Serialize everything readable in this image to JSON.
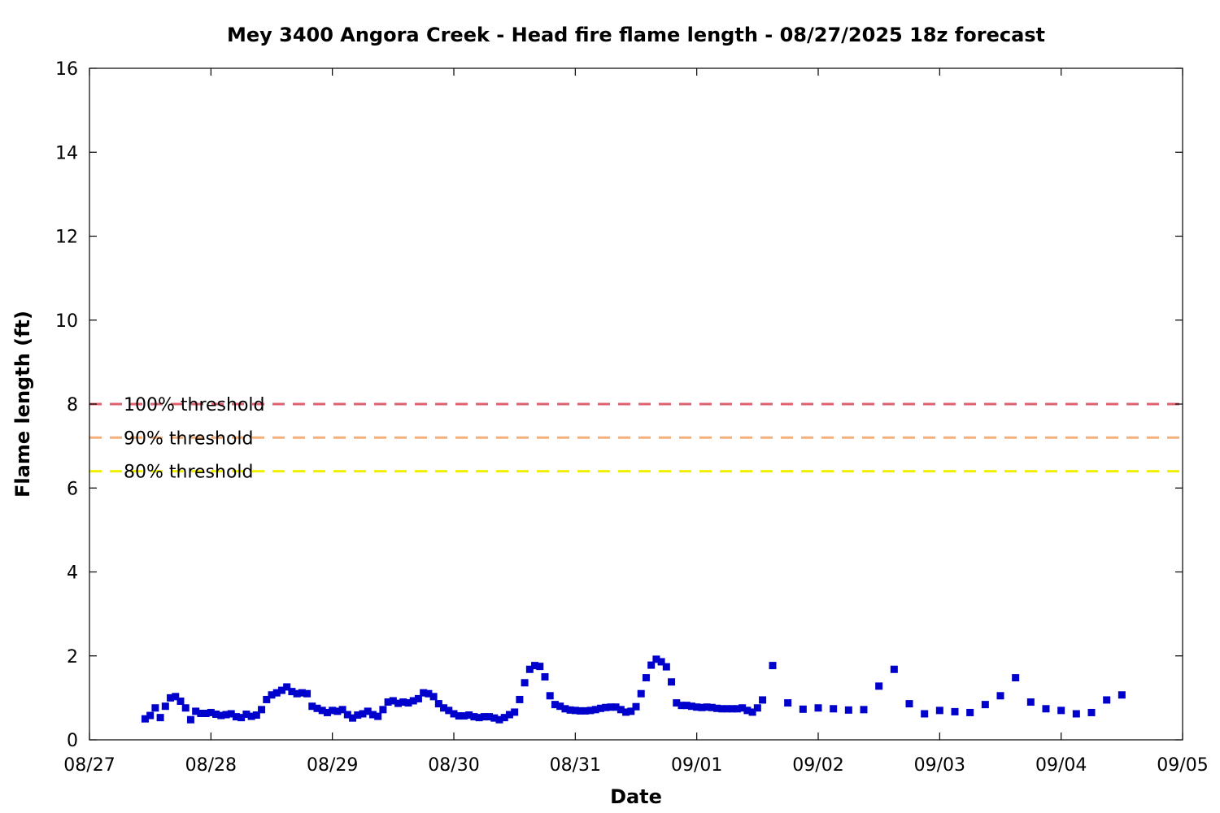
{
  "chart_data": {
    "type": "scatter",
    "title": "Mey 3400 Angora Creek - Head fire flame length - 08/27/2025 18z forecast",
    "xlabel": "Date",
    "ylabel": "Flame length (ft)",
    "xlim": [
      "08/27",
      "09/05"
    ],
    "ylim": [
      0,
      16
    ],
    "x_ticks": [
      "08/27",
      "08/28",
      "08/29",
      "08/30",
      "08/31",
      "09/01",
      "09/02",
      "09/03",
      "09/04",
      "09/05"
    ],
    "y_ticks": [
      "0",
      "2",
      "4",
      "6",
      "8",
      "10",
      "12",
      "14",
      "16"
    ],
    "grid": false,
    "marker_color": "#0000cc",
    "thresholds": [
      {
        "label": "100% threshold",
        "value": 8.0,
        "color": "#e06070"
      },
      {
        "label": "90% threshold",
        "value": 7.2,
        "color": "#f5b07a"
      },
      {
        "label": "80% threshold",
        "value": 6.4,
        "color": "#f0f000"
      }
    ],
    "series": [
      {
        "points": [
          [
            "08/27 11:00",
            0.5
          ],
          [
            "08/27 12:00",
            0.58
          ],
          [
            "08/27 13:00",
            0.76
          ],
          [
            "08/27 14:00",
            0.53
          ],
          [
            "08/27 15:00",
            0.8
          ],
          [
            "08/27 16:00",
            1.0
          ],
          [
            "08/27 17:00",
            1.03
          ],
          [
            "08/27 18:00",
            0.92
          ],
          [
            "08/27 19:00",
            0.76
          ],
          [
            "08/27 20:00",
            0.48
          ],
          [
            "08/27 21:00",
            0.68
          ],
          [
            "08/27 22:00",
            0.63
          ],
          [
            "08/27 23:00",
            0.63
          ],
          [
            "08/28 00:00",
            0.65
          ],
          [
            "08/28 01:00",
            0.61
          ],
          [
            "08/28 02:00",
            0.58
          ],
          [
            "08/28 03:00",
            0.6
          ],
          [
            "08/28 04:00",
            0.62
          ],
          [
            "08/28 05:00",
            0.55
          ],
          [
            "08/28 06:00",
            0.53
          ],
          [
            "08/28 07:00",
            0.61
          ],
          [
            "08/28 08:00",
            0.56
          ],
          [
            "08/28 09:00",
            0.59
          ],
          [
            "08/28 10:00",
            0.72
          ],
          [
            "08/28 11:00",
            0.96
          ],
          [
            "08/28 12:00",
            1.07
          ],
          [
            "08/28 13:00",
            1.12
          ],
          [
            "08/28 14:00",
            1.18
          ],
          [
            "08/28 15:00",
            1.26
          ],
          [
            "08/28 16:00",
            1.15
          ],
          [
            "08/28 17:00",
            1.1
          ],
          [
            "08/28 18:00",
            1.12
          ],
          [
            "08/28 19:00",
            1.1
          ],
          [
            "08/28 20:00",
            0.8
          ],
          [
            "08/28 21:00",
            0.75
          ],
          [
            "08/28 22:00",
            0.7
          ],
          [
            "08/28 23:00",
            0.65
          ],
          [
            "08/29 00:00",
            0.7
          ],
          [
            "08/29 01:00",
            0.68
          ],
          [
            "08/29 02:00",
            0.72
          ],
          [
            "08/29 03:00",
            0.6
          ],
          [
            "08/29 04:00",
            0.52
          ],
          [
            "08/29 05:00",
            0.59
          ],
          [
            "08/29 06:00",
            0.62
          ],
          [
            "08/29 07:00",
            0.68
          ],
          [
            "08/29 08:00",
            0.6
          ],
          [
            "08/29 09:00",
            0.56
          ],
          [
            "08/29 10:00",
            0.72
          ],
          [
            "08/29 11:00",
            0.9
          ],
          [
            "08/29 12:00",
            0.93
          ],
          [
            "08/29 13:00",
            0.87
          ],
          [
            "08/29 14:00",
            0.9
          ],
          [
            "08/29 15:00",
            0.88
          ],
          [
            "08/29 16:00",
            0.93
          ],
          [
            "08/29 17:00",
            0.98
          ],
          [
            "08/29 18:00",
            1.12
          ],
          [
            "08/29 19:00",
            1.1
          ],
          [
            "08/29 20:00",
            1.03
          ],
          [
            "08/29 21:00",
            0.86
          ],
          [
            "08/29 22:00",
            0.76
          ],
          [
            "08/29 23:00",
            0.7
          ],
          [
            "08/30 00:00",
            0.62
          ],
          [
            "08/30 01:00",
            0.57
          ],
          [
            "08/30 02:00",
            0.57
          ],
          [
            "08/30 03:00",
            0.59
          ],
          [
            "08/30 04:00",
            0.55
          ],
          [
            "08/30 05:00",
            0.53
          ],
          [
            "08/30 06:00",
            0.55
          ],
          [
            "08/30 07:00",
            0.55
          ],
          [
            "08/30 08:00",
            0.52
          ],
          [
            "08/30 09:00",
            0.48
          ],
          [
            "08/30 10:00",
            0.53
          ],
          [
            "08/30 11:00",
            0.6
          ],
          [
            "08/30 12:00",
            0.66
          ],
          [
            "08/30 13:00",
            0.96
          ],
          [
            "08/30 14:00",
            1.36
          ],
          [
            "08/30 15:00",
            1.68
          ],
          [
            "08/30 16:00",
            1.77
          ],
          [
            "08/30 17:00",
            1.75
          ],
          [
            "08/30 18:00",
            1.5
          ],
          [
            "08/30 19:00",
            1.05
          ],
          [
            "08/30 20:00",
            0.84
          ],
          [
            "08/30 21:00",
            0.8
          ],
          [
            "08/30 22:00",
            0.74
          ],
          [
            "08/30 23:00",
            0.71
          ],
          [
            "08/31 00:00",
            0.7
          ],
          [
            "08/31 01:00",
            0.69
          ],
          [
            "08/31 02:00",
            0.69
          ],
          [
            "08/31 03:00",
            0.7
          ],
          [
            "08/31 04:00",
            0.72
          ],
          [
            "08/31 05:00",
            0.75
          ],
          [
            "08/31 06:00",
            0.77
          ],
          [
            "08/31 07:00",
            0.78
          ],
          [
            "08/31 08:00",
            0.78
          ],
          [
            "08/31 09:00",
            0.72
          ],
          [
            "08/31 10:00",
            0.66
          ],
          [
            "08/31 11:00",
            0.68
          ],
          [
            "08/31 12:00",
            0.79
          ],
          [
            "08/31 13:00",
            1.1
          ],
          [
            "08/31 14:00",
            1.48
          ],
          [
            "08/31 15:00",
            1.78
          ],
          [
            "08/31 16:00",
            1.92
          ],
          [
            "08/31 17:00",
            1.86
          ],
          [
            "08/31 18:00",
            1.74
          ],
          [
            "08/31 19:00",
            1.38
          ],
          [
            "08/31 20:00",
            0.88
          ],
          [
            "08/31 21:00",
            0.82
          ],
          [
            "08/31 22:00",
            0.82
          ],
          [
            "08/31 23:00",
            0.8
          ],
          [
            "09/01 00:00",
            0.78
          ],
          [
            "09/01 01:00",
            0.77
          ],
          [
            "09/01 02:00",
            0.78
          ],
          [
            "09/01 03:00",
            0.77
          ],
          [
            "09/01 04:00",
            0.75
          ],
          [
            "09/01 05:00",
            0.74
          ],
          [
            "09/01 06:00",
            0.74
          ],
          [
            "09/01 07:00",
            0.74
          ],
          [
            "09/01 08:00",
            0.74
          ],
          [
            "09/01 09:00",
            0.76
          ],
          [
            "09/01 10:00",
            0.7
          ],
          [
            "09/01 11:00",
            0.66
          ],
          [
            "09/01 12:00",
            0.76
          ],
          [
            "09/01 13:00",
            0.95
          ],
          [
            "09/01 15:00",
            1.77
          ],
          [
            "09/01 18:00",
            0.88
          ],
          [
            "09/01 21:00",
            0.73
          ],
          [
            "09/02 00:00",
            0.76
          ],
          [
            "09/02 03:00",
            0.74
          ],
          [
            "09/02 06:00",
            0.71
          ],
          [
            "09/02 09:00",
            0.72
          ],
          [
            "09/02 12:00",
            1.28
          ],
          [
            "09/02 15:00",
            1.68
          ],
          [
            "09/02 18:00",
            0.86
          ],
          [
            "09/02 21:00",
            0.62
          ],
          [
            "09/03 00:00",
            0.7
          ],
          [
            "09/03 03:00",
            0.67
          ],
          [
            "09/03 06:00",
            0.65
          ],
          [
            "09/03 09:00",
            0.84
          ],
          [
            "09/03 12:00",
            1.05
          ],
          [
            "09/03 15:00",
            1.48
          ],
          [
            "09/03 18:00",
            0.9
          ],
          [
            "09/03 21:00",
            0.74
          ],
          [
            "09/04 00:00",
            0.7
          ],
          [
            "09/04 03:00",
            0.62
          ],
          [
            "09/04 06:00",
            0.65
          ],
          [
            "09/04 09:00",
            0.95
          ],
          [
            "09/04 12:00",
            1.07
          ]
        ]
      }
    ]
  }
}
